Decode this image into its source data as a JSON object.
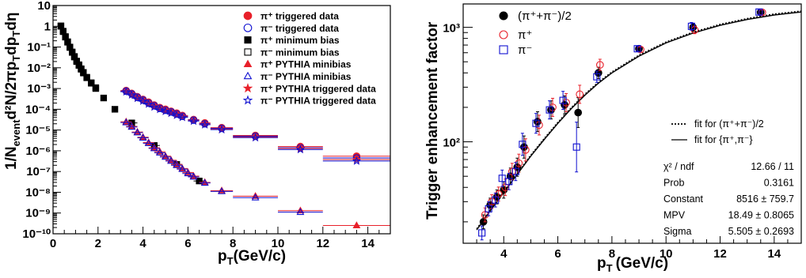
{
  "chart_data": [
    {
      "type": "scatter",
      "xlabel": "p_T(GeV/c)",
      "ylabel": "1/N_event d²N/2πp_T dp_T dη",
      "xlim": [
        0,
        15
      ],
      "ylim": [
        1e-10,
        10
      ],
      "log_y": true,
      "x_ticks": [
        "0",
        "2",
        "4",
        "6",
        "8",
        "10",
        "12",
        "14"
      ],
      "y_ticks": [
        "10⁻¹⁰",
        "10⁻⁹",
        "10⁻⁸",
        "10⁻⁷",
        "10⁻⁶",
        "10⁻⁵",
        "10⁻⁴",
        "10⁻³",
        "10⁻²",
        "10⁻¹",
        "1",
        "10"
      ],
      "legend_position": "top-right",
      "series": [
        {
          "name": "π⁺ triggered data",
          "marker": "filled-circle",
          "color": "#e8202a",
          "x": [
            3.25,
            3.5,
            3.75,
            4.0,
            4.25,
            4.5,
            4.75,
            5.0,
            5.25,
            5.5,
            5.75,
            6.25,
            6.75,
            7.5,
            9.0,
            11.0,
            13.5
          ],
          "y": [
            0.0008,
            0.00058,
            0.0004,
            0.0003,
            0.00022,
            0.00016,
            0.00012,
            0.0001,
            8e-05,
            6.5e-05,
            5e-05,
            3.2e-05,
            2.2e-05,
            1.3e-05,
            5.5e-06,
            1.6e-06,
            5.5e-07
          ]
        },
        {
          "name": "π⁻ triggered data",
          "marker": "open-circle",
          "color": "#1010d0",
          "x": [
            3.25,
            3.5,
            3.75,
            4.0,
            4.25,
            4.5,
            4.75,
            5.0,
            5.25,
            5.5,
            5.75,
            6.25,
            6.75,
            7.5,
            9.0,
            11.0,
            13.5
          ],
          "y": [
            0.00075,
            0.00055,
            0.00038,
            0.00028,
            0.0002,
            0.00015,
            0.00011,
            9e-05,
            7.5e-05,
            6e-05,
            4.6e-05,
            3e-05,
            2e-05,
            1.2e-05,
            5e-06,
            1.4e-06,
            4.5e-07
          ]
        },
        {
          "name": "π⁺ minimum bias",
          "marker": "filled-square",
          "color": "#000000",
          "x": [
            0.35,
            0.45,
            0.55,
            0.65,
            0.75,
            0.85,
            0.95,
            1.05,
            1.15,
            1.25,
            1.35,
            1.5,
            1.7,
            1.9,
            2.25,
            2.75,
            3.5,
            4.5,
            5.5,
            6.5
          ],
          "y": [
            1.0,
            0.55,
            0.3,
            0.17,
            0.095,
            0.055,
            0.033,
            0.02,
            0.013,
            0.0085,
            0.0056,
            0.0033,
            0.0018,
            0.001,
            0.00035,
            0.0001,
            2.2e-05,
            1.8e-06,
            2.2e-07,
            3.5e-08
          ]
        },
        {
          "name": "π⁻ minimum bias",
          "marker": "open-square",
          "color": "#000000",
          "x": [
            0.35,
            0.45,
            0.55,
            0.65,
            0.75,
            0.85,
            0.95,
            1.05,
            1.15,
            1.25,
            1.35,
            1.5,
            1.7,
            1.9
          ],
          "y": [
            1.05,
            0.58,
            0.32,
            0.18,
            0.1,
            0.058,
            0.035,
            0.021,
            0.014,
            0.009,
            0.006,
            0.0035,
            0.0019,
            0.0011
          ]
        },
        {
          "name": "π⁺ PYTHIA minibias",
          "marker": "filled-triangle",
          "color": "#e8202a",
          "x": [
            3.25,
            3.5,
            3.75,
            4.0,
            4.25,
            4.5,
            4.75,
            5.0,
            5.25,
            5.5,
            5.75,
            6.0,
            6.25,
            6.75,
            7.5,
            9.0,
            11.0,
            13.5
          ],
          "y": [
            2.5e-05,
            1.5e-05,
            8e-06,
            4.5e-06,
            2.5e-06,
            1.4e-06,
            9e-07,
            5.5e-07,
            3.5e-07,
            2.2e-07,
            1.4e-07,
            9e-08,
            6e-08,
            3e-08,
            1.2e-08,
            6.5e-09,
            1.3e-09,
            2.5e-10
          ]
        },
        {
          "name": "π⁻ PYTHIA minibias",
          "marker": "open-triangle",
          "color": "#1010d0",
          "x": [
            3.25,
            3.5,
            3.75,
            4.0,
            4.25,
            4.5,
            4.75,
            5.0,
            5.25,
            5.5,
            5.75,
            6.0,
            6.25,
            6.75,
            7.5,
            9.0,
            11.0
          ],
          "y": [
            2.3e-05,
            1.4e-05,
            7.5e-06,
            4.2e-06,
            2.3e-06,
            1.3e-06,
            8e-07,
            5e-07,
            3.2e-07,
            2e-07,
            1.3e-07,
            8e-08,
            5.5e-08,
            2.8e-08,
            1.1e-08,
            5.5e-09,
            1.1e-09
          ]
        },
        {
          "name": "π⁺ PYTHIA triggered data",
          "marker": "filled-star",
          "color": "#e8202a",
          "x": [
            3.25,
            3.5,
            3.75,
            4.0,
            4.25,
            4.5,
            4.75,
            5.0,
            5.25,
            5.5,
            5.75,
            6.25,
            6.75,
            7.5,
            9.0,
            11.0,
            13.5
          ],
          "y": [
            0.00072,
            0.00052,
            0.00036,
            0.00026,
            0.00019,
            0.00014,
            0.000105,
            8.5e-05,
            6.8e-05,
            5.5e-05,
            4.3e-05,
            2.8e-05,
            1.9e-05,
            1.1e-05,
            4.6e-06,
            1.3e-06,
            3.8e-07
          ]
        },
        {
          "name": "π⁻ PYTHIA triggered data",
          "marker": "open-star",
          "color": "#1010d0",
          "x": [
            3.25,
            3.5,
            3.75,
            4.0,
            4.25,
            4.5,
            4.75,
            5.0,
            5.25,
            5.5,
            5.75,
            6.25,
            6.75,
            7.5,
            9.0,
            11.0,
            13.5
          ],
          "y": [
            0.0007,
            0.0005,
            0.00034,
            0.00025,
            0.00018,
            0.00013,
            0.0001,
            8e-05,
            6.5e-05,
            5.2e-05,
            4.1e-05,
            2.7e-05,
            1.8e-05,
            1.05e-05,
            4.3e-06,
            1.15e-06,
            3.2e-07
          ]
        }
      ]
    },
    {
      "type": "scatter",
      "xlabel": "p_T (GeV/c)",
      "ylabel": "Trigger enhancement factor",
      "xlim": [
        2.5,
        15
      ],
      "ylim": [
        13,
        1600
      ],
      "log_y": true,
      "x_ticks": [
        "4",
        "6",
        "8",
        "10",
        "12",
        "14"
      ],
      "y_ticks": [
        "10²",
        "10³"
      ],
      "legend_position": "top-left",
      "series": [
        {
          "name": "(π⁺+π⁻)/2",
          "marker": "filled-circle",
          "color": "#000000",
          "x": [
            3.25,
            3.5,
            3.75,
            4.0,
            4.25,
            4.5,
            4.75,
            5.25,
            5.75,
            6.25,
            6.75,
            7.5,
            9.0,
            11.0,
            13.5
          ],
          "y": [
            20,
            28,
            33,
            38,
            50,
            60,
            90,
            150,
            190,
            210,
            180,
            400,
            650,
            1000,
            1350
          ]
        },
        {
          "name": "π⁺",
          "marker": "open-circle",
          "color": "#e8202a",
          "x": [
            3.25,
            3.5,
            3.75,
            4.0,
            4.25,
            4.5,
            4.75,
            5.25,
            5.75,
            6.25,
            6.75,
            7.5,
            9.0,
            11.0,
            13.5
          ],
          "y": [
            23,
            30,
            35,
            40,
            55,
            65,
            85,
            140,
            200,
            220,
            260,
            470,
            640,
            950,
            1350
          ]
        },
        {
          "name": "π⁻",
          "marker": "open-square",
          "color": "#1010d0",
          "x": [
            3.25,
            3.5,
            3.75,
            4.0,
            4.25,
            4.5,
            4.75,
            5.25,
            5.75,
            6.25,
            6.75,
            7.5,
            9.0,
            11.0,
            13.5
          ],
          "y": [
            16,
            26,
            31,
            48,
            45,
            55,
            95,
            145,
            190,
            230,
            90,
            370,
            650,
            1020,
            1360
          ]
        }
      ],
      "fit_legend": [
        "fit for (π⁺+π⁻)/2",
        "fit for {π⁺,π⁻}"
      ],
      "fit_curve": {
        "x": [
          3.0,
          3.5,
          4.0,
          4.5,
          5.0,
          5.5,
          6.0,
          6.5,
          7.0,
          7.5,
          8.0,
          9.0,
          10.0,
          11.0,
          12.0,
          13.0,
          14.0,
          15.0
        ],
        "y": [
          17,
          25,
          36,
          52,
          75,
          105,
          145,
          195,
          255,
          325,
          400,
          560,
          730,
          890,
          1040,
          1170,
          1280,
          1360
        ]
      },
      "stats": [
        {
          "label": "χ² / ndf",
          "value": "12.66 / 11"
        },
        {
          "label": "Prob",
          "value": "0.3161"
        },
        {
          "label": "Constant",
          "value": "8516 ± 759.7"
        },
        {
          "label": "MPV",
          "value": "18.49 ± 0.8065"
        },
        {
          "label": "Sigma",
          "value": "5.505 ± 0.2693"
        }
      ]
    }
  ]
}
